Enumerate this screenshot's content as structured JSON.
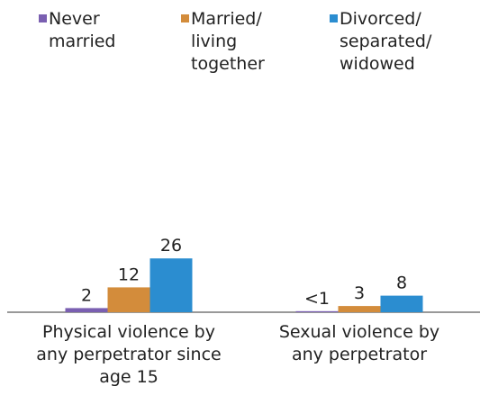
{
  "chart_data": {
    "type": "bar",
    "categories": [
      "Physical violence by any perpetrator since age 15",
      "Sexual violence by any perpetrator"
    ],
    "series": [
      {
        "name": "Never married",
        "color": "#7a5fb1",
        "values": [
          2,
          0.5
        ],
        "value_labels": [
          "2",
          "<1"
        ]
      },
      {
        "name": "Married/ living together",
        "color": "#d38c3b",
        "values": [
          12,
          3
        ]
      },
      {
        "name": "Divorced/ separated/ widowed",
        "color": "#2b8dd0",
        "values": [
          26,
          8
        ]
      }
    ]
  }
}
